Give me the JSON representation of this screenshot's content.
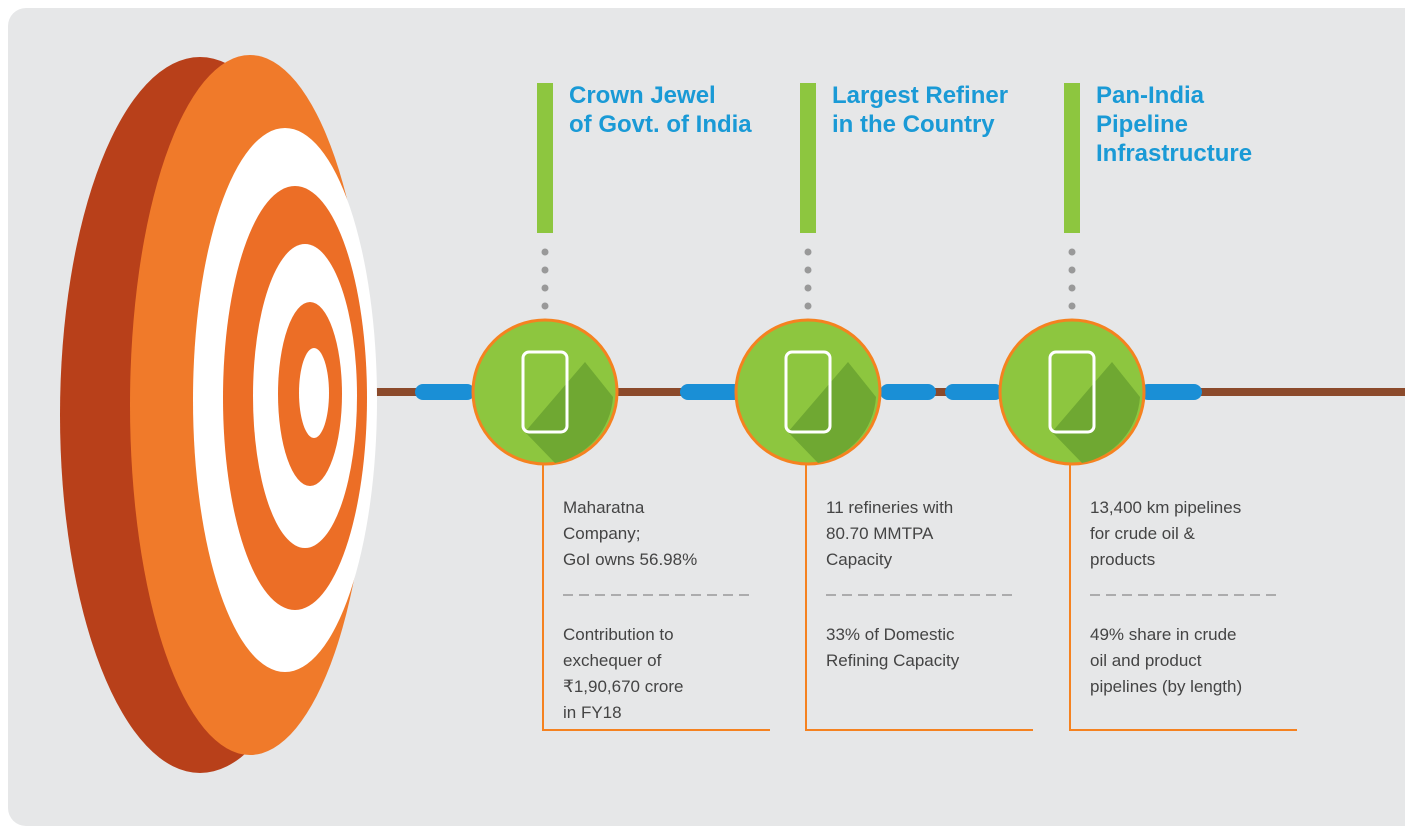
{
  "items": [
    {
      "title": [
        "Crown Jewel",
        "of Govt. of India"
      ],
      "facts": [
        [
          "Maharatna",
          "Company;",
          "GoI owns 56.98%"
        ],
        [
          "Contribution to",
          "exchequer of",
          "₹1,90,670 crore",
          "in FY18"
        ]
      ]
    },
    {
      "title": [
        "Largest Refiner",
        "in the Country"
      ],
      "facts": [
        [
          "11 refineries with",
          "80.70 MMTPA",
          "Capacity"
        ],
        [
          "33% of Domestic",
          "Refining Capacity"
        ]
      ]
    },
    {
      "title": [
        "Pan-India",
        "Pipeline",
        "Infrastructure"
      ],
      "facts": [
        [
          "13,400 km pipelines",
          "for crude oil &",
          "products"
        ],
        [
          "49% share in crude",
          "oil and product",
          "pipelines (by length)"
        ]
      ]
    }
  ]
}
